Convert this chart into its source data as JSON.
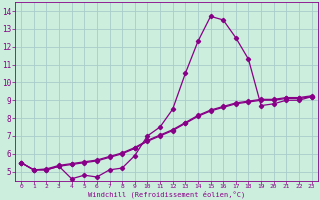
{
  "xlabel": "Windchill (Refroidissement éolien,°C)",
  "bg_color": "#cceedd",
  "grid_color": "#aacccc",
  "line_color": "#880088",
  "xlim": [
    -0.5,
    23.5
  ],
  "ylim": [
    4.5,
    14.5
  ],
  "xticks": [
    0,
    1,
    2,
    3,
    4,
    5,
    6,
    7,
    8,
    9,
    10,
    11,
    12,
    13,
    14,
    15,
    16,
    17,
    18,
    19,
    20,
    21,
    22,
    23
  ],
  "yticks": [
    5,
    6,
    7,
    8,
    9,
    10,
    11,
    12,
    13,
    14
  ],
  "series1_x": [
    0,
    1,
    2,
    3,
    4,
    5,
    6,
    7,
    8,
    9,
    10,
    11,
    12,
    13,
    14,
    15,
    16,
    17,
    18,
    19,
    20,
    21,
    22,
    23
  ],
  "series1_y": [
    5.5,
    5.1,
    5.1,
    5.3,
    4.6,
    4.8,
    4.7,
    5.1,
    5.2,
    5.9,
    7.0,
    7.5,
    8.5,
    10.5,
    12.3,
    13.7,
    13.5,
    12.5,
    11.3,
    8.7,
    8.8,
    9.0,
    9.0,
    9.2
  ],
  "series2_x": [
    0,
    1,
    2,
    3,
    4,
    5,
    6,
    7,
    8,
    9,
    10,
    11,
    12,
    13,
    14,
    15,
    16,
    17,
    18,
    19,
    20,
    21,
    22,
    23
  ],
  "series2_y": [
    5.5,
    5.1,
    5.1,
    5.3,
    5.4,
    5.5,
    5.6,
    5.8,
    6.0,
    6.3,
    6.7,
    7.0,
    7.3,
    7.7,
    8.1,
    8.4,
    8.6,
    8.8,
    8.9,
    9.0,
    9.0,
    9.1,
    9.1,
    9.2
  ],
  "series3_x": [
    0,
    1,
    2,
    3,
    4,
    5,
    6,
    7,
    8,
    9,
    10,
    11,
    12,
    13,
    14,
    15,
    16,
    17,
    18,
    19,
    20,
    21,
    22,
    23
  ],
  "series3_y": [
    5.5,
    5.1,
    5.15,
    5.35,
    5.45,
    5.55,
    5.65,
    5.85,
    6.05,
    6.35,
    6.75,
    7.05,
    7.35,
    7.75,
    8.15,
    8.45,
    8.65,
    8.85,
    8.95,
    9.05,
    9.05,
    9.15,
    9.15,
    9.25
  ]
}
